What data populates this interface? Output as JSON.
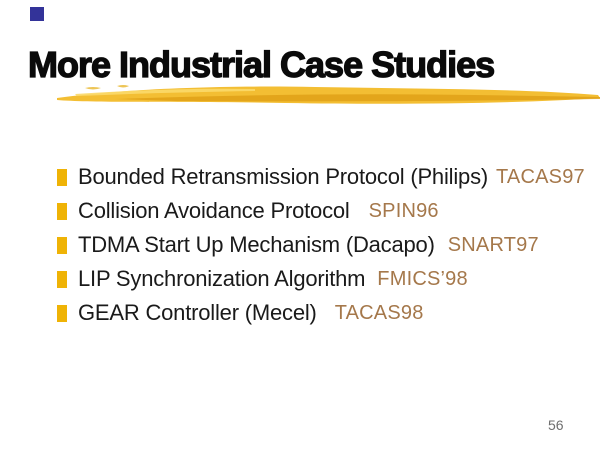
{
  "slide": {
    "title": "More Industrial Case Studies",
    "page_number": "56",
    "items": [
      {
        "text": "Bounded Retransmission Protocol (Philips)",
        "label": "TACAS97"
      },
      {
        "text": "Collision Avoidance Protocol",
        "label": "SPIN96"
      },
      {
        "text": "TDMA Start Up Mechanism (Dacapo)",
        "label": "SNART97"
      },
      {
        "text": "LIP Synchronization Algorithm",
        "label": "FMICS’98"
      },
      {
        "text": "GEAR Controller (Mecel)",
        "label": "TACAS98"
      }
    ],
    "icons": {
      "bullet": "bullet-square-icon",
      "corner": "corner-square-icon"
    },
    "colors": {
      "title_text": "#0A0A0A",
      "body_text": "#1A1A1A",
      "bullet_gold": "#EFB306",
      "conference_label_brown": "#A5784B",
      "swoosh_gold": "#F3BE33",
      "swoosh_dark_gold": "#DFA117",
      "swoosh_light_gold": "#FBD96A",
      "corner_square_navy": "#333399",
      "page_number_gray": "#6E6E6E"
    }
  }
}
